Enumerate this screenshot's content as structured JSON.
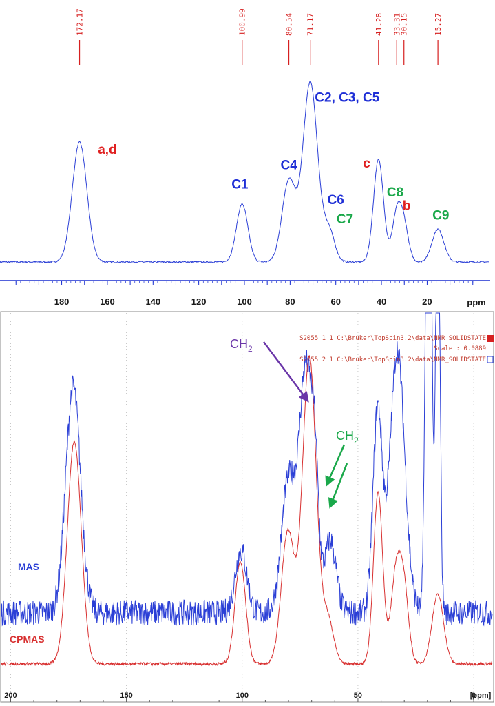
{
  "chart_data": [
    {
      "type": "line",
      "title": "",
      "xlabel": "ppm",
      "ylabel": "",
      "xlim": [
        207,
        -7
      ],
      "x_ticks": [
        "180",
        "160",
        "140",
        "120",
        "100",
        "80",
        "60",
        "40",
        "20"
      ],
      "x_unit_label": "ppm",
      "grid": false,
      "colors": {
        "spectrum": "#2b3fd6",
        "peak_marker": "#d62020",
        "axis": "#1a2fd0"
      },
      "peak_labels": [
        "172.17",
        "100.99",
        "80.54",
        "71.17",
        "41.28",
        "33.31",
        "30.15",
        "15.27"
      ],
      "peaks_ppm": [
        172.17,
        100.99,
        80.54,
        71.17,
        41.28,
        33.31,
        30.15,
        15.27
      ],
      "series": [
        {
          "peaks": [
            {
              "ppm": 172.17,
              "height": 0.62,
              "width": 3.2
            },
            {
              "ppm": 100.99,
              "height": 0.3,
              "width": 2.5
            },
            {
              "ppm": 80.54,
              "height": 0.42,
              "width": 3.0
            },
            {
              "ppm": 71.17,
              "height": 0.93,
              "width": 3.2
            },
            {
              "ppm": 63.0,
              "height": 0.16,
              "width": 2.5
            },
            {
              "ppm": 41.28,
              "height": 0.53,
              "width": 2.2
            },
            {
              "ppm": 33.31,
              "height": 0.24,
              "width": 2.0
            },
            {
              "ppm": 30.15,
              "height": 0.18,
              "width": 2.0
            },
            {
              "ppm": 15.27,
              "height": 0.17,
              "width": 2.6
            }
          ]
        }
      ],
      "annotations": [
        {
          "text": "a,d",
          "ppm": 160,
          "level": 0.56,
          "color": "#e02020"
        },
        {
          "text": "C1",
          "ppm": 102,
          "level": 0.38,
          "color": "#1f2fd6"
        },
        {
          "text": "C4",
          "ppm": 80.5,
          "level": 0.48,
          "color": "#1f2fd6"
        },
        {
          "text": "C2, C3, C5",
          "ppm": 55,
          "level": 0.83,
          "color": "#1f2fd6"
        },
        {
          "text": "C6",
          "ppm": 60,
          "level": 0.3,
          "color": "#1f2fd6"
        },
        {
          "text": "C7",
          "ppm": 56,
          "level": 0.2,
          "color": "#1aa84a"
        },
        {
          "text": "c",
          "ppm": 46.5,
          "level": 0.49,
          "color": "#e02020"
        },
        {
          "text": "C8",
          "ppm": 34,
          "level": 0.34,
          "color": "#1aa84a"
        },
        {
          "text": "b",
          "ppm": 29,
          "level": 0.27,
          "color": "#e02020"
        },
        {
          "text": "C9",
          "ppm": 14,
          "level": 0.22,
          "color": "#1aa84a"
        }
      ]
    },
    {
      "type": "line",
      "title": "",
      "xlabel": "[ppm]",
      "ylabel": "",
      "xlim": [
        204,
        -8
      ],
      "x_ticks": [
        "200",
        "150",
        "100",
        "50",
        "0"
      ],
      "x_unit_label": "[ppm]",
      "grid": true,
      "colors": {
        "mas": "#2b3fd6",
        "cpmas": "#d83030"
      },
      "legend": [
        "S2055  1  1  C:\\Bruker\\TopSpin3.2\\data\\NMR_SOLIDSTATE",
        "S2055  2  1  C:\\Bruker\\TopSpin3.2\\data\\NMR_SOLIDSTATE"
      ],
      "scale_text": "Scale : 0.0889",
      "series": [
        {
          "name": "MAS",
          "color": "#2b3fd6",
          "baseline": 0.21,
          "noise": 0.035,
          "peaks": [
            {
              "ppm": 173,
              "height": 0.62,
              "width": 3.2
            },
            {
              "ppm": 100.5,
              "height": 0.17,
              "width": 2.5
            },
            {
              "ppm": 80,
              "height": 0.36,
              "width": 3.0
            },
            {
              "ppm": 72.5,
              "height": 0.66,
              "width": 2.8
            },
            {
              "ppm": 68.5,
              "height": 0.28,
              "width": 1.6
            },
            {
              "ppm": 62,
              "height": 0.2,
              "width": 2.5
            },
            {
              "ppm": 41.5,
              "height": 0.55,
              "width": 2.0
            },
            {
              "ppm": 33,
              "height": 0.72,
              "width": 3.2
            },
            {
              "ppm": 19.5,
              "height": 2.0,
              "width": 1.1
            },
            {
              "ppm": 15.5,
              "height": 1.3,
              "width": 0.9
            }
          ]
        },
        {
          "name": "CPMAS",
          "color": "#d83030",
          "baseline": 0.07,
          "noise": 0.004,
          "peaks": [
            {
              "ppm": 172.5,
              "height": 0.61,
              "width": 3.0
            },
            {
              "ppm": 100.8,
              "height": 0.28,
              "width": 2.3
            },
            {
              "ppm": 80.3,
              "height": 0.36,
              "width": 2.8
            },
            {
              "ppm": 71,
              "height": 0.84,
              "width": 3.0
            },
            {
              "ppm": 63,
              "height": 0.12,
              "width": 2.5
            },
            {
              "ppm": 41.3,
              "height": 0.47,
              "width": 2.0
            },
            {
              "ppm": 33.5,
              "height": 0.25,
              "width": 2.2
            },
            {
              "ppm": 30,
              "height": 0.18,
              "width": 2.0
            },
            {
              "ppm": 15.5,
              "height": 0.19,
              "width": 2.5
            }
          ]
        }
      ],
      "annotations": [
        {
          "text": "CH",
          "sub": "2",
          "color": "#6a35a8",
          "arrow_to_ppm": 70.5,
          "arrow_level": 0.79
        },
        {
          "text": "CH",
          "sub": "2",
          "color": "#1aa84a",
          "arrow_targets_ppm": [
            63.5,
            62
          ],
          "arrow_levels": [
            0.56,
            0.5
          ]
        }
      ]
    }
  ]
}
